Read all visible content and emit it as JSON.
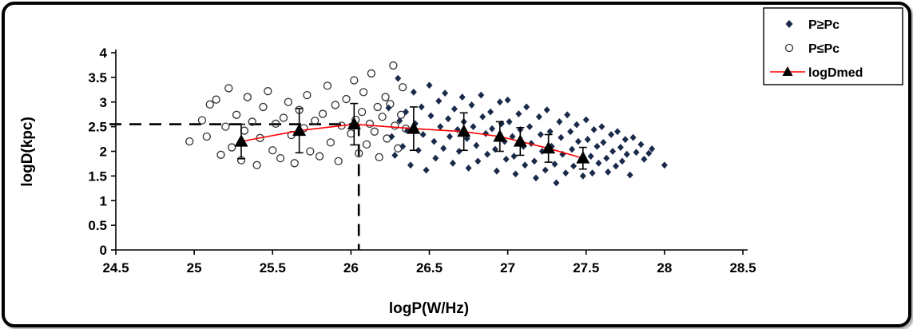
{
  "figure": {
    "background": "#ffffff",
    "border_color": "#000000"
  },
  "chart_data": {
    "type": "scatter",
    "title": "",
    "xlabel": "logP(W/Hz)",
    "ylabel": "logD(kpc)",
    "xlim": [
      24.5,
      28.5
    ],
    "ylim": [
      0,
      4
    ],
    "xticks": [
      24.5,
      25,
      25.5,
      26,
      26.5,
      27,
      27.5,
      28,
      28.5
    ],
    "yticks": [
      0,
      0.5,
      1,
      1.5,
      2,
      2.5,
      3,
      3.5,
      4
    ],
    "x_tick_labels": [
      "24.5",
      "25",
      "25.5",
      "26",
      "26.5",
      "27",
      "27.5",
      "28",
      "28.5"
    ],
    "y_tick_labels": [
      "0",
      "0.5",
      "1",
      "1.5",
      "2",
      "2.5",
      "3",
      "3.5",
      "4"
    ],
    "grid": false,
    "legend_position": "top-right",
    "legend_border_color": "#000000",
    "series": [
      {
        "name": "P≥Pc",
        "marker": "diamond",
        "color": "#1a2a4a",
        "points": [
          [
            26.24,
            2.88
          ],
          [
            26.26,
            2.3
          ],
          [
            26.28,
            1.92
          ],
          [
            26.3,
            3.48
          ],
          [
            26.31,
            2.62
          ],
          [
            26.33,
            2.1
          ],
          [
            26.35,
            2.8
          ],
          [
            26.36,
            2.42
          ],
          [
            26.38,
            1.72
          ],
          [
            26.4,
            3.2
          ],
          [
            26.41,
            2.56
          ],
          [
            26.43,
            2.02
          ],
          [
            26.45,
            2.9
          ],
          [
            26.46,
            2.34
          ],
          [
            26.48,
            1.62
          ],
          [
            26.5,
            3.34
          ],
          [
            26.51,
            2.72
          ],
          [
            26.53,
            2.2
          ],
          [
            26.54,
            1.86
          ],
          [
            26.56,
            3.02
          ],
          [
            26.57,
            2.5
          ],
          [
            26.59,
            2.06
          ],
          [
            26.6,
            3.18
          ],
          [
            26.62,
            2.66
          ],
          [
            26.63,
            2.3
          ],
          [
            26.65,
            1.76
          ],
          [
            26.66,
            2.86
          ],
          [
            26.68,
            2.44
          ],
          [
            26.69,
            2.0
          ],
          [
            26.71,
            3.1
          ],
          [
            26.72,
            2.6
          ],
          [
            26.74,
            2.26
          ],
          [
            26.75,
            1.66
          ],
          [
            26.77,
            2.94
          ],
          [
            26.78,
            2.5
          ],
          [
            26.8,
            2.12
          ],
          [
            26.81,
            1.8
          ],
          [
            26.83,
            3.14
          ],
          [
            26.84,
            2.7
          ],
          [
            26.86,
            2.36
          ],
          [
            26.87,
            1.94
          ],
          [
            26.89,
            2.8
          ],
          [
            26.9,
            2.46
          ],
          [
            26.92,
            2.04
          ],
          [
            26.93,
            1.6
          ],
          [
            26.95,
            3.0
          ],
          [
            26.96,
            2.56
          ],
          [
            26.98,
            2.2
          ],
          [
            26.99,
            1.84
          ],
          [
            27.0,
            3.04
          ],
          [
            27.01,
            2.6
          ],
          [
            27.03,
            2.3
          ],
          [
            27.04,
            1.9
          ],
          [
            27.05,
            1.54
          ],
          [
            27.07,
            2.76
          ],
          [
            27.08,
            2.44
          ],
          [
            27.1,
            2.1
          ],
          [
            27.11,
            1.72
          ],
          [
            27.12,
            2.9
          ],
          [
            27.14,
            2.5
          ],
          [
            27.15,
            2.16
          ],
          [
            27.17,
            1.8
          ],
          [
            27.18,
            1.46
          ],
          [
            27.2,
            2.7
          ],
          [
            27.21,
            2.34
          ],
          [
            27.22,
            2.0
          ],
          [
            27.24,
            1.62
          ],
          [
            27.25,
            2.84
          ],
          [
            27.27,
            2.4
          ],
          [
            27.28,
            2.1
          ],
          [
            27.3,
            1.74
          ],
          [
            27.31,
            1.36
          ],
          [
            27.33,
            2.6
          ],
          [
            27.34,
            2.28
          ],
          [
            27.35,
            1.94
          ],
          [
            27.37,
            1.56
          ],
          [
            27.38,
            2.74
          ],
          [
            27.4,
            2.4
          ],
          [
            27.41,
            2.04
          ],
          [
            27.42,
            1.7
          ],
          [
            27.44,
            2.54
          ],
          [
            27.45,
            2.2
          ],
          [
            27.47,
            1.84
          ],
          [
            27.48,
            1.5
          ],
          [
            27.5,
            2.64
          ],
          [
            27.51,
            2.24
          ],
          [
            27.53,
            1.9
          ],
          [
            27.54,
            1.56
          ],
          [
            27.55,
            2.44
          ],
          [
            27.57,
            2.1
          ],
          [
            27.58,
            1.76
          ],
          [
            27.6,
            2.5
          ],
          [
            27.61,
            2.18
          ],
          [
            27.63,
            1.86
          ],
          [
            27.64,
            1.58
          ],
          [
            27.66,
            2.34
          ],
          [
            27.67,
            2.0
          ],
          [
            27.69,
            1.7
          ],
          [
            27.7,
            2.4
          ],
          [
            27.72,
            2.08
          ],
          [
            27.73,
            1.8
          ],
          [
            27.75,
            2.24
          ],
          [
            27.76,
            1.94
          ],
          [
            27.78,
            1.52
          ],
          [
            27.8,
            2.28
          ],
          [
            27.82,
            1.98
          ],
          [
            27.85,
            2.14
          ],
          [
            27.87,
            1.84
          ],
          [
            27.9,
            1.96
          ],
          [
            27.92,
            2.05
          ],
          [
            28.0,
            1.72
          ]
        ]
      },
      {
        "name": "P≤Pc",
        "marker": "open-circle",
        "color": "#333333",
        "points": [
          [
            24.97,
            2.2
          ],
          [
            25.05,
            2.63
          ],
          [
            25.08,
            2.3
          ],
          [
            25.1,
            2.95
          ],
          [
            25.14,
            3.05
          ],
          [
            25.17,
            1.93
          ],
          [
            25.2,
            2.5
          ],
          [
            25.22,
            3.28
          ],
          [
            25.24,
            2.08
          ],
          [
            25.27,
            2.74
          ],
          [
            25.3,
            1.82
          ],
          [
            25.32,
            2.42
          ],
          [
            25.34,
            3.1
          ],
          [
            25.37,
            2.6
          ],
          [
            25.4,
            1.72
          ],
          [
            25.42,
            2.27
          ],
          [
            25.44,
            2.9
          ],
          [
            25.47,
            3.22
          ],
          [
            25.5,
            2.02
          ],
          [
            25.52,
            2.56
          ],
          [
            25.55,
            1.86
          ],
          [
            25.57,
            2.68
          ],
          [
            25.6,
            3.0
          ],
          [
            25.62,
            2.33
          ],
          [
            25.64,
            1.76
          ],
          [
            25.67,
            2.84
          ],
          [
            25.7,
            2.47
          ],
          [
            25.72,
            3.14
          ],
          [
            25.74,
            2.0
          ],
          [
            25.77,
            2.62
          ],
          [
            25.8,
            1.9
          ],
          [
            25.82,
            2.76
          ],
          [
            25.85,
            3.33
          ],
          [
            25.87,
            2.18
          ],
          [
            25.9,
            2.94
          ],
          [
            25.92,
            1.8
          ],
          [
            25.94,
            2.52
          ],
          [
            25.97,
            3.06
          ],
          [
            26.0,
            2.36
          ],
          [
            26.02,
            3.44
          ],
          [
            26.03,
            2.64
          ],
          [
            26.05,
            1.96
          ],
          [
            26.07,
            2.8
          ],
          [
            26.08,
            3.2
          ],
          [
            26.1,
            2.14
          ],
          [
            26.12,
            2.56
          ],
          [
            26.13,
            3.58
          ],
          [
            26.15,
            2.4
          ],
          [
            26.17,
            2.9
          ],
          [
            26.18,
            1.88
          ],
          [
            26.2,
            2.7
          ],
          [
            26.22,
            3.1
          ],
          [
            26.23,
            2.26
          ],
          [
            26.25,
            2.96
          ],
          [
            26.27,
            3.74
          ],
          [
            26.28,
            2.52
          ],
          [
            26.3,
            2.06
          ],
          [
            26.32,
            2.74
          ],
          [
            26.33,
            3.3
          ],
          [
            26.35,
            2.46
          ]
        ]
      },
      {
        "name": "logDmed",
        "marker": "triangle",
        "line_color": "#ff0000",
        "marker_color": "#000000",
        "points": [
          [
            25.3,
            2.2
          ],
          [
            25.67,
            2.42
          ],
          [
            26.02,
            2.55
          ],
          [
            26.4,
            2.46
          ],
          [
            26.72,
            2.4
          ],
          [
            26.95,
            2.3
          ],
          [
            27.08,
            2.2
          ],
          [
            27.26,
            2.06
          ],
          [
            27.48,
            1.86
          ]
        ],
        "errors": [
          0.35,
          0.45,
          0.42,
          0.44,
          0.38,
          0.3,
          0.28,
          0.28,
          0.22
        ]
      }
    ],
    "annotations": {
      "dashed_horizontal": {
        "y": 2.55,
        "x_from": 24.5,
        "x_to": 26.05
      },
      "dashed_vertical": {
        "x": 26.05,
        "y_from": 0,
        "y_to": 2.55
      }
    }
  }
}
